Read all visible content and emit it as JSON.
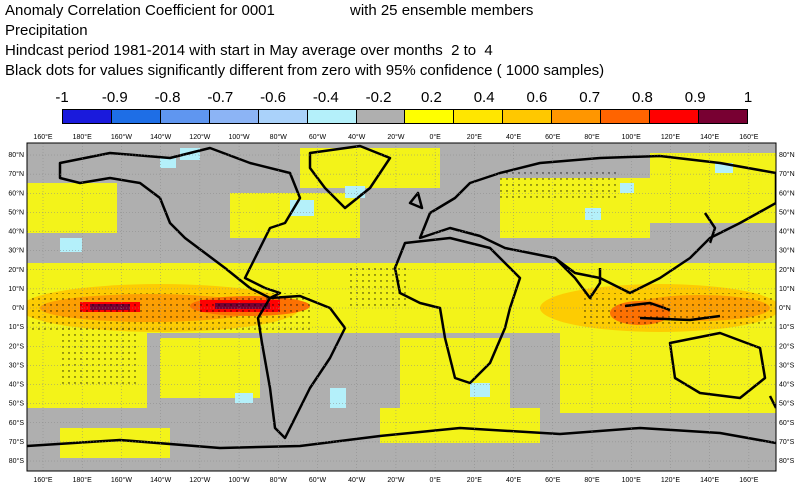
{
  "title": {
    "line1": "Anomaly Correlation Coefficient for 0001",
    "line1_right": "with 25 ensemble members",
    "line2": "Precipitation",
    "line3": "Hindcast period 1981-2014 with start in May average over months  2 to  4",
    "line4": "Black dots for values significantly different from zero with 95% confidence ( 1000 samples)"
  },
  "legend": {
    "labels": [
      "-1",
      "-0.9",
      "-0.8",
      "-0.7",
      "-0.6",
      "-0.4",
      "-0.2",
      "0.2",
      "0.4",
      "0.6",
      "0.7",
      "0.8",
      "0.9",
      "1"
    ],
    "colors": [
      "#1a1adc",
      "#1e6ee6",
      "#5f96f0",
      "#8cb4f5",
      "#aad2fa",
      "#b4f0fa",
      "#afafaf",
      "#ffff00",
      "#ffe600",
      "#ffc800",
      "#ff9600",
      "#ff6400",
      "#ff0000",
      "#780032"
    ]
  },
  "map": {
    "top_lon_labels": [
      "160°E",
      "180°E",
      "160°W",
      "140°W",
      "120°W",
      "100°W",
      "80°W",
      "60°W",
      "40°W",
      "20°W",
      "0°E",
      "20°E",
      "40°E",
      "60°E",
      "80°E",
      "100°E",
      "120°E",
      "140°E",
      "160°E"
    ],
    "bottom_lon_labels": [
      "160°E",
      "180°E",
      "160°W",
      "140°W",
      "120°W",
      "100°W",
      "80°W",
      "60°W",
      "40°W",
      "20°W",
      "0°E",
      "20°E",
      "40°E",
      "60°E",
      "80°E",
      "100°E",
      "120°E",
      "140°E",
      "160°E"
    ],
    "lat_labels": [
      "80°N",
      "70°N",
      "60°N",
      "50°N",
      "40°N",
      "30°N",
      "20°N",
      "10°N",
      "0°N",
      "10°S",
      "20°S",
      "30°S",
      "40°S",
      "50°S",
      "60°S",
      "70°S",
      "80°S"
    ],
    "background_color": "#afafaf",
    "coastline_color": "#000000"
  }
}
